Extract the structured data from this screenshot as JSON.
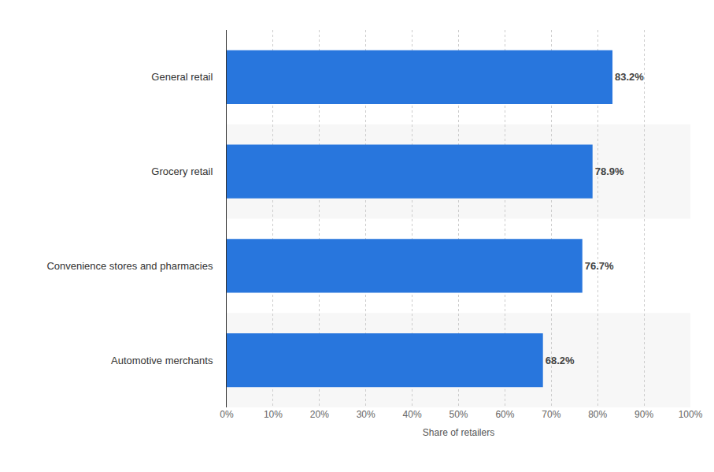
{
  "chart_data": {
    "type": "bar",
    "orientation": "horizontal",
    "categories": [
      "General retail",
      "Grocery retail",
      "Convenience stores and pharmacies",
      "Automotive merchants"
    ],
    "values": [
      83.2,
      78.9,
      76.7,
      68.2
    ],
    "value_labels": [
      "83.2%",
      "78.9%",
      "76.7%",
      "68.2%"
    ],
    "data_labels": true,
    "color": "#2876dd",
    "x_label": "Share of retailers",
    "xlim": [
      0,
      100
    ],
    "xticks": [
      {
        "value": 0,
        "label": "0%"
      },
      {
        "value": 10,
        "label": "10%"
      },
      {
        "value": 20,
        "label": "20%"
      },
      {
        "value": 30,
        "label": "30%"
      },
      {
        "value": 40,
        "label": "40%"
      },
      {
        "value": 50,
        "label": "50%"
      },
      {
        "value": 60,
        "label": "60%"
      },
      {
        "value": 70,
        "label": "70%"
      },
      {
        "value": 80,
        "label": "80%"
      },
      {
        "value": 90,
        "label": "90%"
      },
      {
        "value": 100,
        "label": "100%"
      }
    ],
    "grid": true
  }
}
